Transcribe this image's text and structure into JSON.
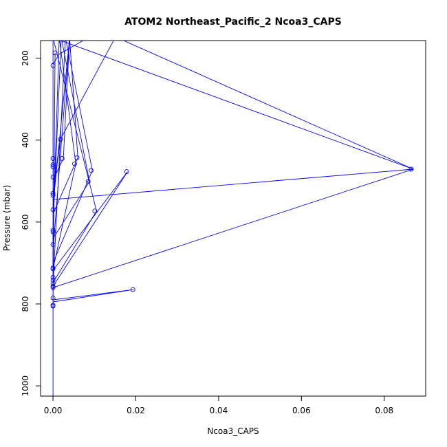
{
  "chart_data": {
    "type": "line",
    "title": "ATOM2 Northeast_Pacific_2 Ncoa3_CAPS",
    "xlabel": "Ncoa3_CAPS",
    "ylabel": "Pressure (mbar)",
    "xlim": [
      -0.003,
      0.09
    ],
    "ylim": [
      1025,
      157
    ],
    "y_reversed": true,
    "grid": false,
    "x_ticks": [
      0.0,
      0.02,
      0.04,
      0.06,
      0.08
    ],
    "x_tick_labels": [
      "0.00",
      "0.02",
      "0.04",
      "0.06",
      "0.08"
    ],
    "y_ticks": [
      200,
      400,
      600,
      800,
      1000
    ],
    "y_tick_labels": [
      "200",
      "400",
      "600",
      "800",
      "1000"
    ],
    "color": "#0000ff",
    "series": [
      {
        "x": [
          0.0,
          0.0,
          0.0005,
          0.0,
          0.0,
          0.0,
          0.0,
          0.0,
          0.0,
          0.0,
          0.0,
          0.0,
          0.0,
          0.0,
          0.0,
          0.0,
          0.0,
          0.0,
          0.0,
          0.0,
          0.0,
          0.0,
          0.0,
          0.0,
          0.0,
          0.0,
          0.0,
          0.0,
          0.0,
          0.0,
          0.0
        ],
        "y": [
          1025,
          805,
          187,
          732,
          625,
          805,
          760,
          692,
          625,
          712,
          805,
          760,
          735,
          742,
          700,
          760,
          697,
          755,
          710,
          760,
          785,
          760,
          755,
          757,
          620,
          698,
          760,
          745,
          712,
          740,
          755
        ]
      },
      {
        "x": [
          0.0,
          0.0,
          0.0,
          0.0,
          0.0,
          0.0,
          0.0,
          0.0,
          0.0,
          0.0,
          0.0,
          0.0,
          0.0,
          0.0,
          0.0,
          0.0,
          0.0,
          0.0,
          0.0,
          0.0,
          0.0,
          0.0,
          0.0,
          0.0,
          0.0,
          0.0
        ],
        "y": [
          157,
          710,
          165,
          695,
          215,
          440,
          150,
          715,
          400,
          615,
          565,
          460,
          735,
          155,
          530,
          490,
          760,
          150,
          455,
          218,
          535,
          620,
          705,
          155,
          768,
          760
        ]
      },
      {
        "x": [
          0.0,
          0.087,
          0.0
        ],
        "y": [
          760,
          471,
          150
        ]
      },
      {
        "x": [
          0.0,
          0.087,
          0.0155
        ],
        "y": [
          545,
          471,
          150
        ]
      },
      {
        "x": [
          0.0,
          0.018,
          0.0
        ],
        "y": [
          718,
          477,
          757
        ]
      },
      {
        "x": [
          0.0,
          0.0105,
          0.0
        ],
        "y": [
          150,
          573,
          748
        ]
      },
      {
        "x": [
          0.0,
          0.0095,
          0.003,
          0.0
        ],
        "y": [
          700,
          474,
          150,
          757
        ]
      },
      {
        "x": [
          0.0,
          0.0088,
          0.002,
          0.0
        ],
        "y": [
          640,
          501,
          150,
          610
        ]
      },
      {
        "x": [
          0.0,
          0.0195,
          0.0
        ],
        "y": [
          795,
          765,
          790
        ]
      },
      {
        "x": [
          0.0,
          0.0055,
          0.0015,
          0.0
        ],
        "y": [
          715,
          458,
          150,
          628
        ]
      },
      {
        "x": [
          0.0,
          0.006,
          0.004,
          0.0
        ],
        "y": [
          580,
          443,
          150,
          670
        ]
      },
      {
        "x": [
          0.0,
          0.0025,
          0.004,
          0.0
        ],
        "y": [
          498,
          445,
          150,
          560
        ]
      },
      {
        "x": [
          0.0015,
          0.0,
          0.0018,
          0.015
        ],
        "y": [
          412,
          535,
          398,
          150
        ]
      },
      {
        "x": [
          0.0,
          0.0015,
          0.0085
        ],
        "y": [
          215,
          190,
          150
        ]
      }
    ],
    "markers": [
      {
        "x": 0.0005,
        "y": 187
      },
      {
        "x": 0.0,
        "y": 218
      },
      {
        "x": 0.0018,
        "y": 398
      },
      {
        "x": 0.0,
        "y": 445
      },
      {
        "x": 0.0058,
        "y": 443
      },
      {
        "x": 0.0022,
        "y": 445
      },
      {
        "x": 0.0052,
        "y": 458
      },
      {
        "x": 0.0,
        "y": 460
      },
      {
        "x": 0.0,
        "y": 465
      },
      {
        "x": 0.0865,
        "y": 471
      },
      {
        "x": 0.0178,
        "y": 477
      },
      {
        "x": 0.0092,
        "y": 474
      },
      {
        "x": 0.0,
        "y": 490
      },
      {
        "x": 0.0085,
        "y": 501
      },
      {
        "x": 0.0,
        "y": 530
      },
      {
        "x": 0.0,
        "y": 535
      },
      {
        "x": 0.0,
        "y": 570
      },
      {
        "x": 0.0101,
        "y": 573
      },
      {
        "x": 0.0,
        "y": 620
      },
      {
        "x": 0.0,
        "y": 624
      },
      {
        "x": 0.0,
        "y": 655
      },
      {
        "x": 0.0,
        "y": 712
      },
      {
        "x": 0.0,
        "y": 714
      },
      {
        "x": 0.0,
        "y": 735
      },
      {
        "x": 0.0,
        "y": 742
      },
      {
        "x": 0.0,
        "y": 751
      },
      {
        "x": 0.0,
        "y": 757
      },
      {
        "x": 0.0,
        "y": 760
      },
      {
        "x": 0.0193,
        "y": 765
      },
      {
        "x": 0.0,
        "y": 785
      },
      {
        "x": 0.0,
        "y": 803
      },
      {
        "x": 0.0,
        "y": 805
      }
    ]
  }
}
